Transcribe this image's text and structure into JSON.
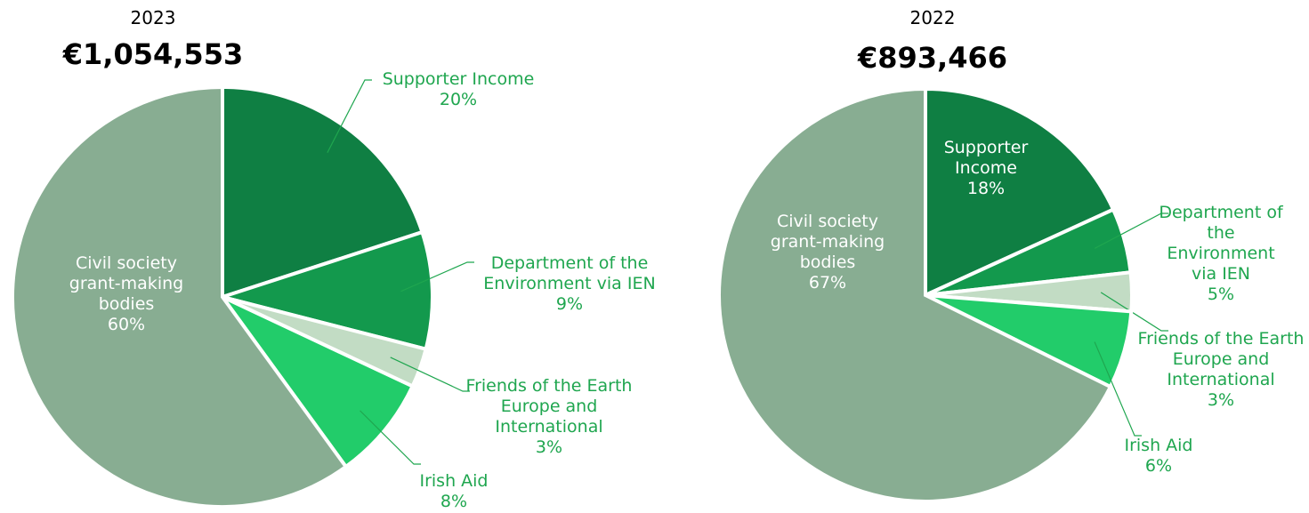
{
  "chart_data": [
    {
      "type": "pie",
      "title": "2023",
      "subtitle": "€1,054,553",
      "categories": [
        "Supporter Income",
        "Department of  the Environment via IEN",
        "Friends of the Earth Europe and International",
        "Irish Aid",
        "Civil society grant-making bodies"
      ],
      "values": [
        20,
        9,
        3,
        8,
        60
      ],
      "value_labels": [
        "20%",
        "9%",
        "3%",
        "8%",
        "60%"
      ],
      "colors": [
        "#0f7f43",
        "#13994d",
        "#c2dcc4",
        "#22cc6a",
        "#88ad92"
      ]
    },
    {
      "type": "pie",
      "title": "2022",
      "subtitle": "€893,466",
      "categories": [
        "Supporter Income",
        "Department of  the Environment via IEN",
        "Friends of the Earth Europe and International",
        "Irish Aid",
        "Civil society grant-making bodies"
      ],
      "values": [
        18,
        5,
        3,
        6,
        67
      ],
      "value_labels": [
        "18%",
        "5%",
        "3%",
        "6%",
        "67%"
      ],
      "colors": [
        "#0f7f43",
        "#13994d",
        "#c2dcc4",
        "#22cc6a",
        "#88ad92"
      ]
    }
  ]
}
